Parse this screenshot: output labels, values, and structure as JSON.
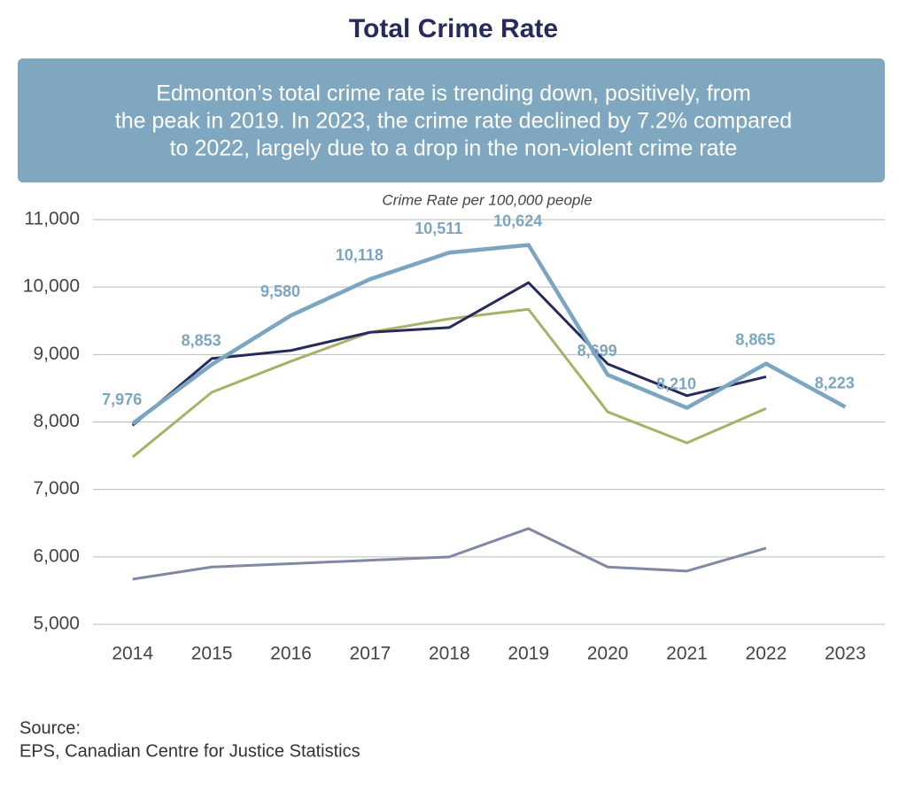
{
  "chart_data": {
    "type": "line",
    "title": "Total Crime Rate",
    "summary": [
      "Edmonton’s total crime rate is trending down, positively, from",
      "the peak in 2019. In 2023, the crime rate declined by 7.2% compared",
      "to 2022, largely due to a drop in the non-violent crime rate"
    ],
    "y_label": "Crime Rate per 100,000 people",
    "categories": [
      "2014",
      "2015",
      "2016",
      "2017",
      "2018",
      "2019",
      "2020",
      "2021",
      "2022",
      "2023"
    ],
    "series": [
      {
        "color": "#7ba6c1",
        "values": [
          7976,
          8853,
          9580,
          10118,
          10511,
          10624,
          8699,
          8210,
          8865,
          8223
        ],
        "value_labels": [
          "7,976",
          "8,853",
          "9,580",
          "10,118",
          "10,511",
          "10,624",
          "8,699",
          "8,210",
          "8,865",
          "8,223"
        ]
      },
      {
        "color": "#262a5c",
        "values": [
          7950,
          8940,
          9060,
          9330,
          9400,
          10066,
          8860,
          8390,
          8670,
          null
        ]
      },
      {
        "color": "#a9b06a",
        "values": [
          7480,
          8440,
          8900,
          9330,
          9530,
          9670,
          8150,
          7690,
          8200,
          null
        ]
      },
      {
        "color": "#8088a5",
        "values": [
          5670,
          5850,
          5900,
          5950,
          6000,
          6420,
          5850,
          5790,
          6130,
          null
        ]
      }
    ],
    "ylim": [
      5000,
      11000
    ],
    "yticks": [
      {
        "value": 5000,
        "label": "5,000"
      },
      {
        "value": 6000,
        "label": "6,000"
      },
      {
        "value": 7000,
        "label": "7,000"
      },
      {
        "value": 8000,
        "label": "8,000"
      },
      {
        "value": 9000,
        "label": "9,000"
      },
      {
        "value": 10000,
        "label": "10,000"
      },
      {
        "value": 11000,
        "label": "11,000"
      }
    ],
    "grid": true,
    "source": [
      "Source:",
      "EPS, Canadian Centre for Justice Statistics"
    ]
  }
}
